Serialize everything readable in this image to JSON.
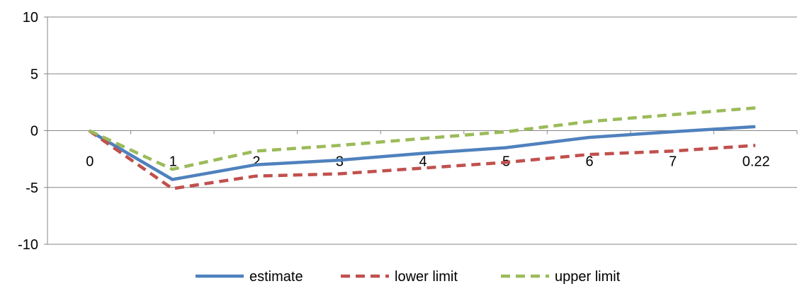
{
  "chart_data": {
    "type": "line",
    "categories": [
      "0",
      "1",
      "2",
      "3",
      "4",
      "5",
      "6",
      "7",
      "0.22"
    ],
    "ylim": [
      -10,
      10
    ],
    "yticks": [
      10,
      5,
      0,
      -5,
      -10
    ],
    "grid": "horizontal",
    "legend_position": "bottom",
    "series": [
      {
        "name": "estimate",
        "color": "#4F81BD",
        "style": "solid",
        "values": [
          0,
          -4.3,
          -3.0,
          -2.6,
          -2.0,
          -1.5,
          -0.6,
          -0.1,
          0.35
        ]
      },
      {
        "name": "lower limit",
        "color": "#C0504D",
        "style": "dashed",
        "values": [
          0,
          -5.1,
          -4.0,
          -3.8,
          -3.3,
          -2.8,
          -2.1,
          -1.8,
          -1.3
        ]
      },
      {
        "name": "upper limit",
        "color": "#9BBB59",
        "style": "dashed",
        "values": [
          0,
          -3.4,
          -1.8,
          -1.3,
          -0.7,
          -0.1,
          0.8,
          1.4,
          2.0
        ]
      }
    ]
  }
}
